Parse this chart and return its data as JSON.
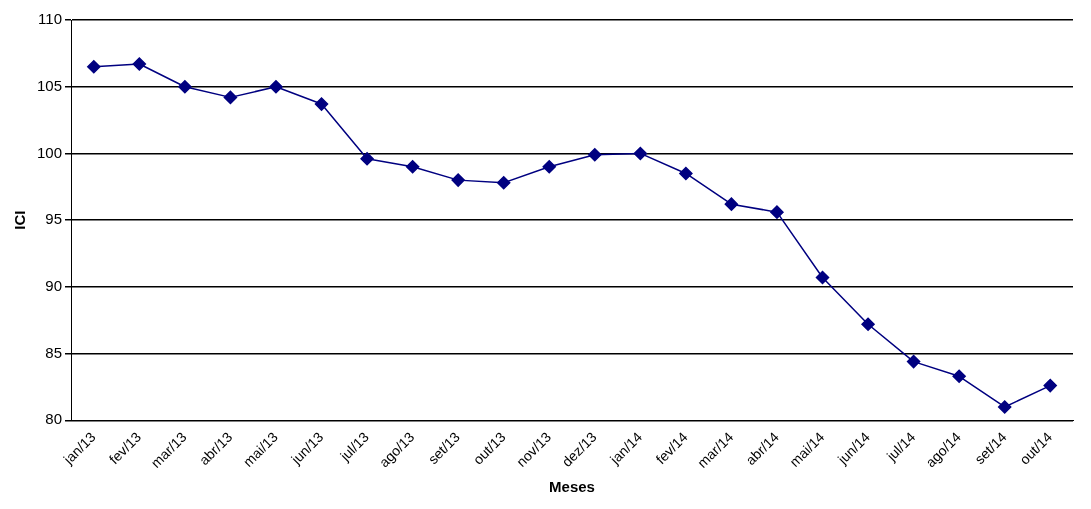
{
  "chart_data": {
    "type": "line",
    "xlabel": "Meses",
    "ylabel": "ICI",
    "categories": [
      "jan/13",
      "fev/13",
      "mar/13",
      "abr/13",
      "mai/13",
      "jun/13",
      "jul/13",
      "ago/13",
      "set/13",
      "out/13",
      "nov/13",
      "dez/13",
      "jan/14",
      "fev/14",
      "mar/14",
      "abr/14",
      "mai/14",
      "jun/14",
      "jul/14",
      "ago/14",
      "set/14",
      "out/14"
    ],
    "series": [
      {
        "color": "#000080",
        "values": [
          106.5,
          106.7,
          105.0,
          104.2,
          105.0,
          103.7,
          99.6,
          99.0,
          98.0,
          97.8,
          99.0,
          99.9,
          100.0,
          98.5,
          96.2,
          95.6,
          90.7,
          87.2,
          84.4,
          83.3,
          81.0,
          82.6
        ]
      }
    ],
    "ylim": [
      80,
      110
    ],
    "yticks": [
      80,
      85,
      90,
      95,
      100,
      105,
      110
    ],
    "grid": "y",
    "legend": false,
    "marker": "diamond",
    "line_style": "solid"
  }
}
